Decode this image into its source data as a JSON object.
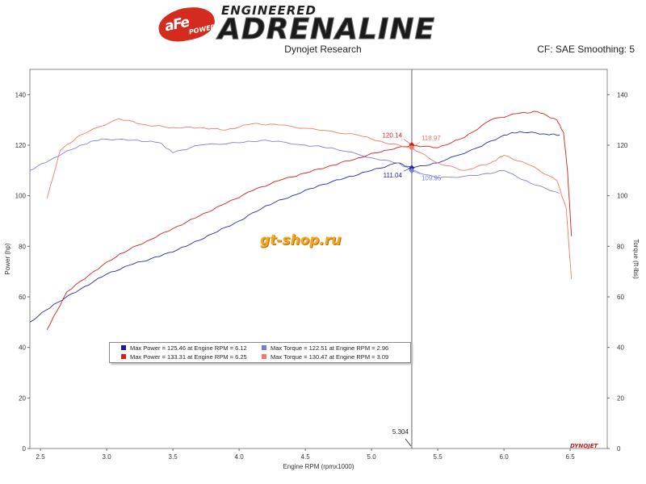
{
  "header": {
    "brand_badge": "aFe",
    "brand_badge_sub": "POWER",
    "brand_top": "ENGINEERED",
    "brand_main": "ADRENALINE",
    "subtitle": "Dynojet Research",
    "cf_label": "CF: SAE Smoothing: 5"
  },
  "watermark": "gt-shop.ru",
  "dynojet_mark": "DYNOJET",
  "chart_data": {
    "type": "line",
    "xlabel": "Engine RPM (rpmx1000)",
    "ylabel_left": "Power (hp)",
    "ylabel_right": "Torque (ft-lbs)",
    "xlim": [
      2.42,
      6.78
    ],
    "ylim": [
      0,
      150
    ],
    "x_ticks": [
      "2.5",
      "3.0",
      "3.5",
      "4.0",
      "4.5",
      "5.0",
      "5.5",
      "6.0",
      "6.5"
    ],
    "y_ticks_left": [
      "0",
      "20",
      "40",
      "60",
      "80",
      "100",
      "120",
      "140"
    ],
    "y_ticks_right": [
      "0",
      "20",
      "40",
      "60",
      "80",
      "100",
      "120",
      "140"
    ],
    "cursor_x": 5.304,
    "cursor_label": "5.304",
    "cursor_annotations": [
      {
        "text": "120.14",
        "x": 5.304,
        "y": 120.14,
        "color": "#d42020",
        "side": "left"
      },
      {
        "text": "118.97",
        "x": 5.304,
        "y": 118.97,
        "color": "#f07a6a",
        "side": "right"
      },
      {
        "text": "111.04",
        "x": 5.304,
        "y": 111.04,
        "color": "#2222aa",
        "side": "left"
      },
      {
        "text": "109.95",
        "x": 5.304,
        "y": 109.95,
        "color": "#7a7ad8",
        "side": "right"
      }
    ],
    "legend": [
      {
        "label": "Max Power = 125.46 at Engine RPM = 6.12",
        "color": "#1a1aa0"
      },
      {
        "label": "Max Torque = 122.51 at Engine RPM = 2.96",
        "color": "#7a7ad8"
      },
      {
        "label": "Max Power = 133.31 at Engine RPM = 6.25",
        "color": "#d42020"
      },
      {
        "label": "Max Torque = 130.47 at Engine RPM = 3.09",
        "color": "#f07a6a"
      }
    ],
    "series": [
      {
        "color": "#2a2ab0",
        "x": [
          2.42,
          2.6,
          2.8,
          3.0,
          3.2,
          3.4,
          3.6,
          3.8,
          4.0,
          4.2,
          4.4,
          4.6,
          4.8,
          5.0,
          5.2,
          5.304,
          5.5,
          5.8,
          6.0,
          6.12,
          6.3,
          6.42
        ],
        "y": [
          50,
          57,
          63,
          69,
          73,
          76,
          80,
          85,
          90,
          96,
          100,
          104,
          107,
          110,
          113,
          111,
          113,
          119,
          124,
          125.4,
          124.5,
          124
        ]
      },
      {
        "color": "#8080e0",
        "x": [
          2.42,
          2.6,
          2.8,
          2.96,
          3.2,
          3.4,
          3.5,
          3.7,
          4.0,
          4.2,
          4.5,
          4.7,
          5.0,
          5.2,
          5.304,
          5.5,
          5.8,
          6.0,
          6.2,
          6.42
        ],
        "y": [
          110,
          115,
          120,
          122.5,
          122,
          121,
          117,
          120,
          121,
          122,
          120,
          119,
          115,
          113,
          110,
          107,
          108,
          110,
          105,
          101
        ]
      },
      {
        "color": "#d42020",
        "x": [
          2.55,
          2.7,
          2.9,
          3.1,
          3.3,
          3.5,
          3.7,
          3.9,
          4.1,
          4.3,
          4.5,
          4.7,
          4.9,
          5.1,
          5.304,
          5.5,
          5.7,
          5.9,
          6.1,
          6.25,
          6.4,
          6.45,
          6.48,
          6.51
        ],
        "y": [
          47,
          62,
          70,
          77,
          82,
          87,
          92,
          97,
          102,
          106,
          109,
          112,
          115,
          118,
          120,
          119,
          123,
          130,
          132.5,
          133.3,
          130,
          125,
          110,
          84
        ]
      },
      {
        "color": "#f07a6a",
        "x": [
          2.55,
          2.65,
          2.8,
          3.09,
          3.3,
          3.5,
          3.7,
          3.9,
          4.1,
          4.3,
          4.6,
          4.9,
          5.1,
          5.304,
          5.5,
          5.7,
          5.9,
          6.0,
          6.2,
          6.4,
          6.47,
          6.51
        ],
        "y": [
          99,
          118,
          124,
          130.5,
          128,
          127,
          127,
          126,
          128.5,
          128,
          126,
          124,
          121,
          119,
          113,
          110,
          113,
          116,
          112,
          106,
          95,
          67
        ]
      }
    ]
  }
}
